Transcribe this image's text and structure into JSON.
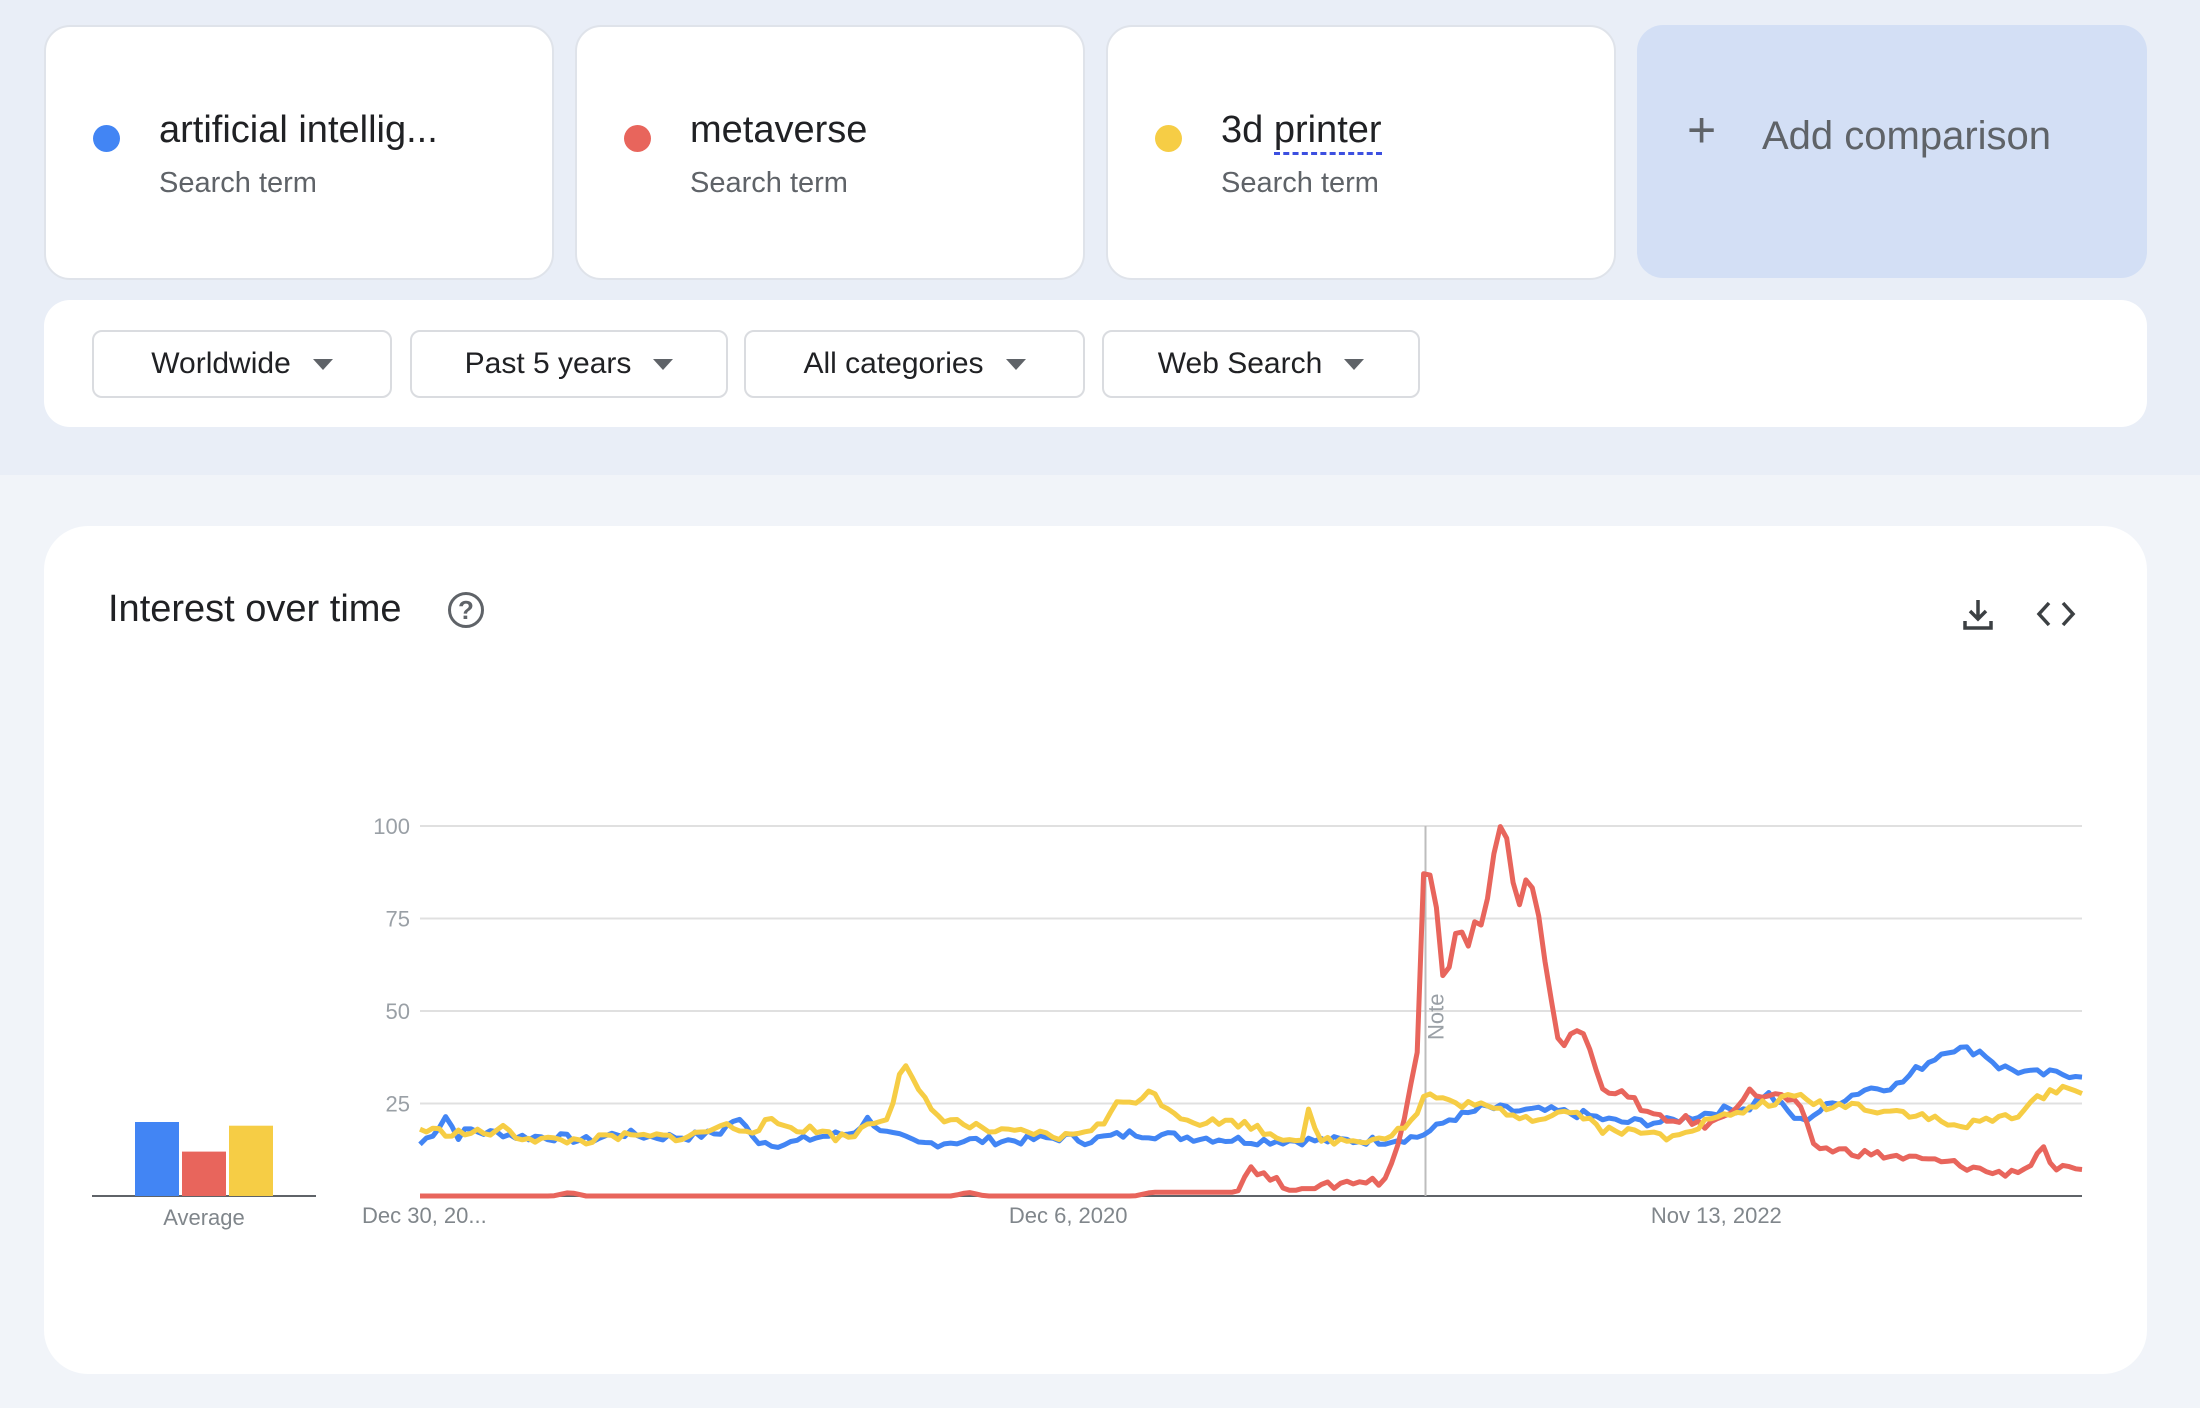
{
  "search_terms": [
    {
      "name": "artificial intellig...",
      "sub": "Search term",
      "color": "#4285f4"
    },
    {
      "name": "metaverse",
      "sub": "Search term",
      "color": "#e8655c"
    },
    {
      "name": "3d printer",
      "sub": "Search term",
      "color": "#f6cd45"
    }
  ],
  "add_comparison": {
    "label": "Add comparison",
    "icon": "plus-icon"
  },
  "filters": {
    "region": "Worldwide",
    "period": "Past 5 years",
    "category": "All categories",
    "search_type": "Web Search"
  },
  "chart": {
    "title": "Interest over time",
    "help_icon": "help-icon",
    "download_icon": "download-icon",
    "embed_icon": "embed-icon",
    "average_label": "Average",
    "note_label": "Note"
  },
  "chart_data": {
    "type": "line",
    "y_ticks": [
      25,
      50,
      75,
      100
    ],
    "ylim": [
      0,
      100
    ],
    "grid": true,
    "x_tick_labels": [
      "Dec 30, 20...",
      "Dec 6, 2020",
      "Nov 13, 2022"
    ],
    "x_tick_fractions": [
      0,
      0.39,
      0.78
    ],
    "note_fraction": 0.605,
    "averages": [
      20,
      12,
      19
    ],
    "series": [
      {
        "name": "artificial intellig...",
        "color": "#4285f4",
        "keypoints": [
          [
            0,
            14
          ],
          [
            0.01,
            18
          ],
          [
            0.016,
            22
          ],
          [
            0.022,
            16
          ],
          [
            0.03,
            18
          ],
          [
            0.04,
            17
          ],
          [
            0.05,
            17
          ],
          [
            0.06,
            16
          ],
          [
            0.08,
            16
          ],
          [
            0.1,
            15
          ],
          [
            0.12,
            17
          ],
          [
            0.14,
            16
          ],
          [
            0.16,
            16
          ],
          [
            0.18,
            17
          ],
          [
            0.19,
            21
          ],
          [
            0.2,
            17
          ],
          [
            0.2,
            15
          ],
          [
            0.22,
            14
          ],
          [
            0.24,
            16
          ],
          [
            0.26,
            17
          ],
          [
            0.27,
            21
          ],
          [
            0.28,
            17
          ],
          [
            0.3,
            14
          ],
          [
            0.33,
            15
          ],
          [
            0.36,
            15
          ],
          [
            0.39,
            16
          ],
          [
            0.4,
            15
          ],
          [
            0.43,
            17
          ],
          [
            0.46,
            16
          ],
          [
            0.5,
            15
          ],
          [
            0.54,
            15
          ],
          [
            0.58,
            15
          ],
          [
            0.6,
            16
          ],
          [
            0.61,
            18
          ],
          [
            0.62,
            21
          ],
          [
            0.63,
            22
          ],
          [
            0.64,
            24
          ],
          [
            0.66,
            23
          ],
          [
            0.68,
            23
          ],
          [
            0.7,
            22
          ],
          [
            0.71,
            21
          ],
          [
            0.72,
            20
          ],
          [
            0.75,
            20
          ],
          [
            0.78,
            23
          ],
          [
            0.8,
            24
          ],
          [
            0.81,
            28
          ],
          [
            0.82,
            24
          ],
          [
            0.83,
            20
          ],
          [
            0.85,
            25
          ],
          [
            0.87,
            29
          ],
          [
            0.89,
            30
          ],
          [
            0.9,
            34
          ],
          [
            0.91,
            37
          ],
          [
            0.92,
            40
          ],
          [
            0.94,
            39
          ],
          [
            0.95,
            35
          ],
          [
            0.97,
            33
          ],
          [
            0.98,
            33
          ],
          [
            0.99,
            33
          ],
          [
            1.0,
            33
          ],
          [
            1.0,
            32
          ]
        ]
      },
      {
        "name": "metaverse",
        "color": "#e8655c",
        "keypoints": [
          [
            0,
            0
          ],
          [
            0.08,
            0
          ],
          [
            0.09,
            1
          ],
          [
            0.1,
            0
          ],
          [
            0.2,
            0
          ],
          [
            0.3,
            0
          ],
          [
            0.32,
            0
          ],
          [
            0.33,
            1
          ],
          [
            0.34,
            0
          ],
          [
            0.43,
            0
          ],
          [
            0.44,
            1
          ],
          [
            0.45,
            1
          ],
          [
            0.46,
            1
          ],
          [
            0.47,
            1
          ],
          [
            0.48,
            1
          ],
          [
            0.49,
            1
          ],
          [
            0.5,
            8
          ],
          [
            0.51,
            5
          ],
          [
            0.52,
            3
          ],
          [
            0.53,
            2
          ],
          [
            0.54,
            2
          ],
          [
            0.55,
            3
          ],
          [
            0.56,
            4
          ],
          [
            0.57,
            4
          ],
          [
            0.58,
            4
          ],
          [
            0.59,
            15
          ],
          [
            0.6,
            40
          ],
          [
            0.6,
            89
          ],
          [
            0.61,
            87
          ],
          [
            0.615,
            60
          ],
          [
            0.62,
            63
          ],
          [
            0.625,
            75
          ],
          [
            0.63,
            65
          ],
          [
            0.635,
            76
          ],
          [
            0.64,
            72
          ],
          [
            0.645,
            90
          ],
          [
            0.65,
            100
          ],
          [
            0.655,
            95
          ],
          [
            0.66,
            75
          ],
          [
            0.665,
            85
          ],
          [
            0.67,
            82
          ],
          [
            0.675,
            70
          ],
          [
            0.68,
            55
          ],
          [
            0.685,
            42
          ],
          [
            0.69,
            41
          ],
          [
            0.695,
            45
          ],
          [
            0.7,
            44
          ],
          [
            0.705,
            38
          ],
          [
            0.71,
            30
          ],
          [
            0.72,
            28
          ],
          [
            0.73,
            26
          ],
          [
            0.74,
            22
          ],
          [
            0.75,
            20
          ],
          [
            0.76,
            21
          ],
          [
            0.77,
            19
          ],
          [
            0.78,
            20
          ],
          [
            0.79,
            24
          ],
          [
            0.8,
            28
          ],
          [
            0.81,
            27
          ],
          [
            0.82,
            27
          ],
          [
            0.83,
            24
          ],
          [
            0.835,
            18
          ],
          [
            0.84,
            13
          ],
          [
            0.86,
            12
          ],
          [
            0.88,
            11
          ],
          [
            0.9,
            10
          ],
          [
            0.92,
            9
          ],
          [
            0.94,
            7
          ],
          [
            0.95,
            6
          ],
          [
            0.96,
            7
          ],
          [
            0.97,
            8
          ],
          [
            0.975,
            15
          ],
          [
            0.98,
            8
          ],
          [
            0.99,
            7
          ],
          [
            1.0,
            6
          ]
        ]
      },
      {
        "name": "3d printer",
        "color": "#f6cd45",
        "keypoints": [
          [
            0,
            18
          ],
          [
            0.02,
            17
          ],
          [
            0.04,
            17
          ],
          [
            0.05,
            18
          ],
          [
            0.06,
            16
          ],
          [
            0.08,
            15
          ],
          [
            0.1,
            15
          ],
          [
            0.12,
            16
          ],
          [
            0.14,
            16
          ],
          [
            0.16,
            16
          ],
          [
            0.17,
            17
          ],
          [
            0.18,
            19
          ],
          [
            0.2,
            18
          ],
          [
            0.21,
            20
          ],
          [
            0.22,
            19
          ],
          [
            0.23,
            18
          ],
          [
            0.24,
            18
          ],
          [
            0.25,
            16
          ],
          [
            0.26,
            16
          ],
          [
            0.27,
            20
          ],
          [
            0.28,
            21
          ],
          [
            0.285,
            26
          ],
          [
            0.29,
            37
          ],
          [
            0.295,
            32
          ],
          [
            0.3,
            28
          ],
          [
            0.305,
            25
          ],
          [
            0.31,
            22
          ],
          [
            0.33,
            19
          ],
          [
            0.35,
            17
          ],
          [
            0.37,
            17
          ],
          [
            0.38,
            16
          ],
          [
            0.39,
            16
          ],
          [
            0.4,
            18
          ],
          [
            0.41,
            19
          ],
          [
            0.42,
            25
          ],
          [
            0.43,
            26
          ],
          [
            0.44,
            28
          ],
          [
            0.45,
            24
          ],
          [
            0.46,
            21
          ],
          [
            0.47,
            20
          ],
          [
            0.49,
            20
          ],
          [
            0.5,
            19
          ],
          [
            0.51,
            17
          ],
          [
            0.52,
            16
          ],
          [
            0.53,
            15
          ],
          [
            0.535,
            23
          ],
          [
            0.54,
            15
          ],
          [
            0.56,
            15
          ],
          [
            0.58,
            16
          ],
          [
            0.59,
            18
          ],
          [
            0.6,
            22
          ],
          [
            0.605,
            28
          ],
          [
            0.61,
            27
          ],
          [
            0.62,
            25
          ],
          [
            0.63,
            25
          ],
          [
            0.64,
            24
          ],
          [
            0.65,
            23
          ],
          [
            0.66,
            22
          ],
          [
            0.67,
            21
          ],
          [
            0.68,
            22
          ],
          [
            0.69,
            23
          ],
          [
            0.7,
            22
          ],
          [
            0.71,
            18
          ],
          [
            0.72,
            18
          ],
          [
            0.73,
            17
          ],
          [
            0.74,
            17
          ],
          [
            0.75,
            16
          ],
          [
            0.76,
            18
          ],
          [
            0.77,
            19
          ],
          [
            0.78,
            22
          ],
          [
            0.79,
            21
          ],
          [
            0.8,
            24
          ],
          [
            0.81,
            25
          ],
          [
            0.82,
            26
          ],
          [
            0.83,
            27
          ],
          [
            0.84,
            25
          ],
          [
            0.85,
            24
          ],
          [
            0.86,
            25
          ],
          [
            0.87,
            24
          ],
          [
            0.88,
            23
          ],
          [
            0.89,
            23
          ],
          [
            0.9,
            22
          ],
          [
            0.91,
            21
          ],
          [
            0.92,
            19
          ],
          [
            0.93,
            19
          ],
          [
            0.94,
            20
          ],
          [
            0.95,
            21
          ],
          [
            0.96,
            22
          ],
          [
            0.97,
            25
          ],
          [
            0.98,
            28
          ],
          [
            0.99,
            30
          ],
          [
            1.0,
            27
          ]
        ]
      }
    ]
  }
}
